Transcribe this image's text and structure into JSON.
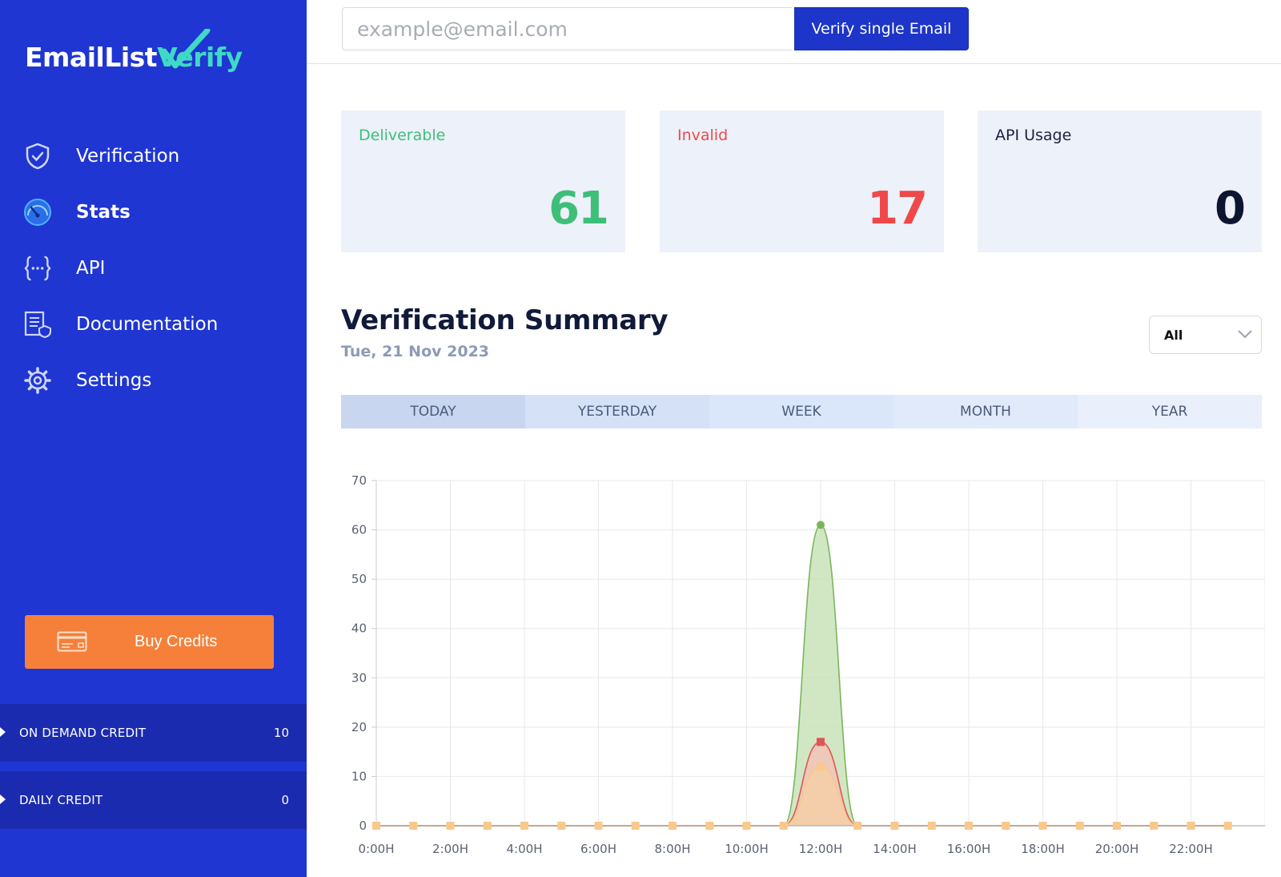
{
  "brand": {
    "name_part1": "EmailList",
    "name_part2": "Verify",
    "accent": "#3fd9c5"
  },
  "sidebar": {
    "items": [
      {
        "label": "Verification",
        "icon": "shield-check-icon",
        "active": false
      },
      {
        "label": "Stats",
        "icon": "gauge-icon",
        "active": true
      },
      {
        "label": "API",
        "icon": "code-braces-icon",
        "active": false
      },
      {
        "label": "Documentation",
        "icon": "document-icon",
        "active": false
      },
      {
        "label": "Settings",
        "icon": "gear-icon",
        "active": false
      }
    ],
    "buy_credits_label": "Buy Credits",
    "credits": [
      {
        "label": "ON DEMAND CREDIT",
        "value": "10"
      },
      {
        "label": "DAILY CREDIT",
        "value": "0"
      }
    ]
  },
  "topbar": {
    "email_placeholder": "example@email.com",
    "verify_label": "Verify single Email"
  },
  "stats": [
    {
      "title": "Deliverable",
      "value": "61",
      "color": "#3dbf78"
    },
    {
      "title": "Invalid",
      "value": "17",
      "color": "#f04848"
    },
    {
      "title": "API Usage",
      "value": "0",
      "color": "#0e1530"
    }
  ],
  "summary": {
    "title": "Verification Summary",
    "date": "Tue, 21 Nov 2023",
    "filter_value": "All",
    "tabs": [
      "TODAY",
      "YESTERDAY",
      "WEEK",
      "MONTH",
      "YEAR"
    ],
    "active_tab": 0
  },
  "chart_data": {
    "type": "area",
    "x": [
      "0:00H",
      "1:00H",
      "2:00H",
      "3:00H",
      "4:00H",
      "5:00H",
      "6:00H",
      "7:00H",
      "8:00H",
      "9:00H",
      "10:00H",
      "11:00H",
      "12:00H",
      "13:00H",
      "14:00H",
      "15:00H",
      "16:00H",
      "17:00H",
      "18:00H",
      "19:00H",
      "20:00H",
      "21:00H",
      "22:00H",
      "23:00H"
    ],
    "tick_labels": [
      "0:00H",
      "2:00H",
      "4:00H",
      "6:00H",
      "8:00H",
      "10:00H",
      "12:00H",
      "14:00H",
      "16:00H",
      "18:00H",
      "20:00H",
      "22:00H"
    ],
    "series": [
      {
        "values": [
          0,
          0,
          0,
          0,
          0,
          0,
          0,
          0,
          0,
          0,
          0,
          0,
          61,
          0,
          0,
          0,
          0,
          0,
          0,
          0,
          0,
          0,
          0,
          0
        ],
        "color": "#7ab55c",
        "fill": "#c9e3b8",
        "marker": "circle"
      },
      {
        "values": [
          0,
          0,
          0,
          0,
          0,
          0,
          0,
          0,
          0,
          0,
          0,
          0,
          17,
          0,
          0,
          0,
          0,
          0,
          0,
          0,
          0,
          0,
          0,
          0
        ],
        "color": "#e05656",
        "fill": "#f3c2b7",
        "marker": "square"
      },
      {
        "values": [
          0,
          0,
          0,
          0,
          0,
          0,
          0,
          0,
          0,
          0,
          0,
          0,
          12,
          0,
          0,
          0,
          0,
          0,
          0,
          0,
          0,
          0,
          0,
          0
        ],
        "color": "#f9c88c",
        "fill": "#f6cfa7",
        "marker": "square"
      }
    ],
    "ylim": [
      0,
      70
    ],
    "yticks": [
      0,
      10,
      20,
      30,
      40,
      50,
      60,
      70
    ],
    "grid": true
  }
}
